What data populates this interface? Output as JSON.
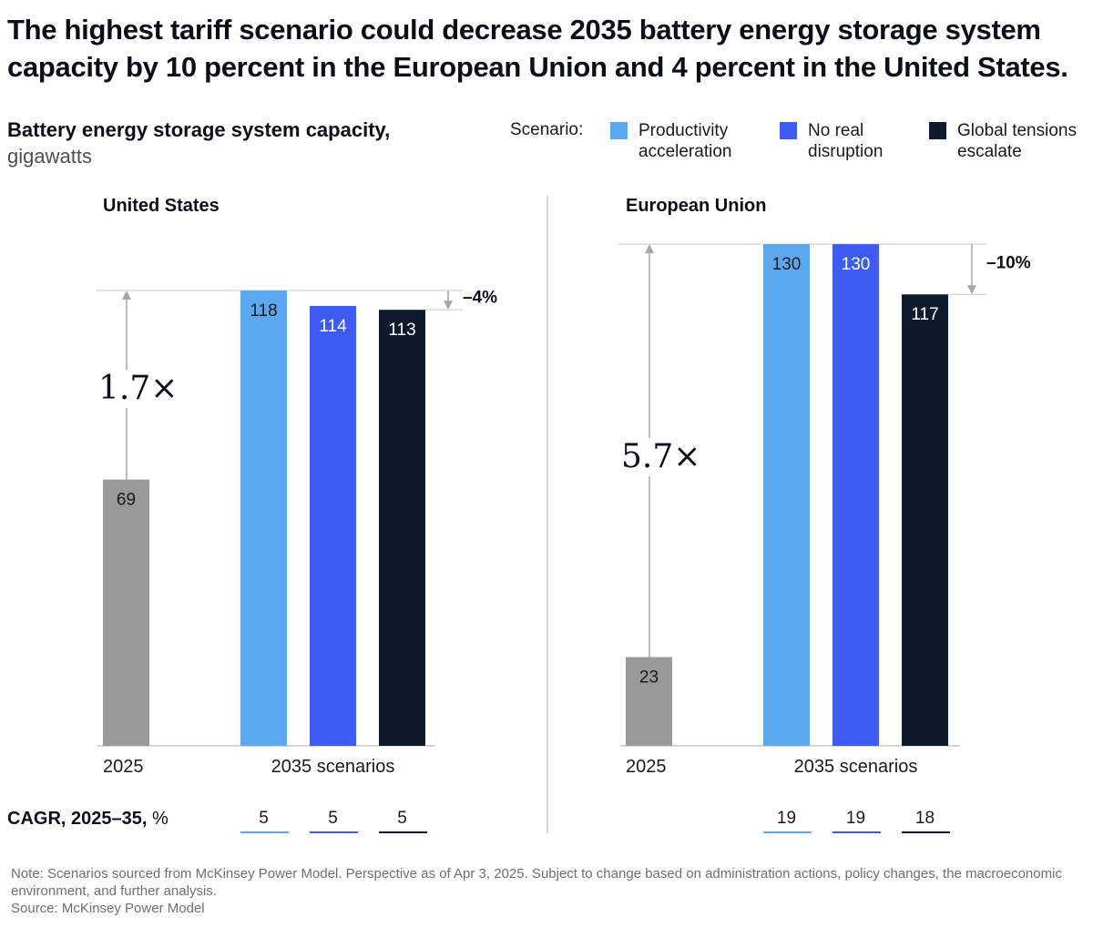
{
  "title": "The highest tariff scenario could decrease 2035 battery energy storage system capacity by 10 percent in the European Union and 4 percent in the United States.",
  "subtitle": {
    "bold": "Battery energy storage system capacity,",
    "unit": "gigawatts"
  },
  "legend": {
    "label": "Scenario:",
    "items": [
      {
        "line1": "Productivity",
        "line2": "acceleration",
        "color": "#5ca8ee"
      },
      {
        "line1": "No real",
        "line2": "disruption",
        "color": "#3d5af1"
      },
      {
        "line1": "Global tensions",
        "line2": "escalate",
        "color": "#0f1b2d"
      }
    ]
  },
  "colors": {
    "base": "#999999",
    "grid": "#c8c8c8",
    "arrow": "#a6a6a6"
  },
  "cagr_label_bold": "CAGR, 2025–35,",
  "cagr_label_unit": "%",
  "x_label_2025": "2025",
  "x_label_2035": "2035 scenarios",
  "chart_data": [
    {
      "type": "bar",
      "panel": "United States",
      "categories": [
        "2025",
        "Productivity acceleration",
        "No real disruption",
        "Global tensions escalate"
      ],
      "values": [
        69,
        118,
        114,
        113
      ],
      "ylim": [
        0,
        118
      ],
      "multiplier": "1.7×",
      "change": "–4%",
      "cagr": [
        "5",
        "5",
        "5"
      ]
    },
    {
      "type": "bar",
      "panel": "European Union",
      "categories": [
        "2025",
        "Productivity acceleration",
        "No real disruption",
        "Global tensions escalate"
      ],
      "values": [
        23,
        130,
        130,
        117
      ],
      "ylim": [
        0,
        130
      ],
      "multiplier": "5.7×",
      "change": "–10%",
      "cagr": [
        "19",
        "19",
        "18"
      ]
    }
  ],
  "note": "Note: Scenarios sourced from McKinsey Power Model. Perspective as of Apr 3, 2025. Subject to change based on administration actions, policy changes, the macroeconomic environment, and further analysis.",
  "source": "Source: McKinsey Power Model"
}
